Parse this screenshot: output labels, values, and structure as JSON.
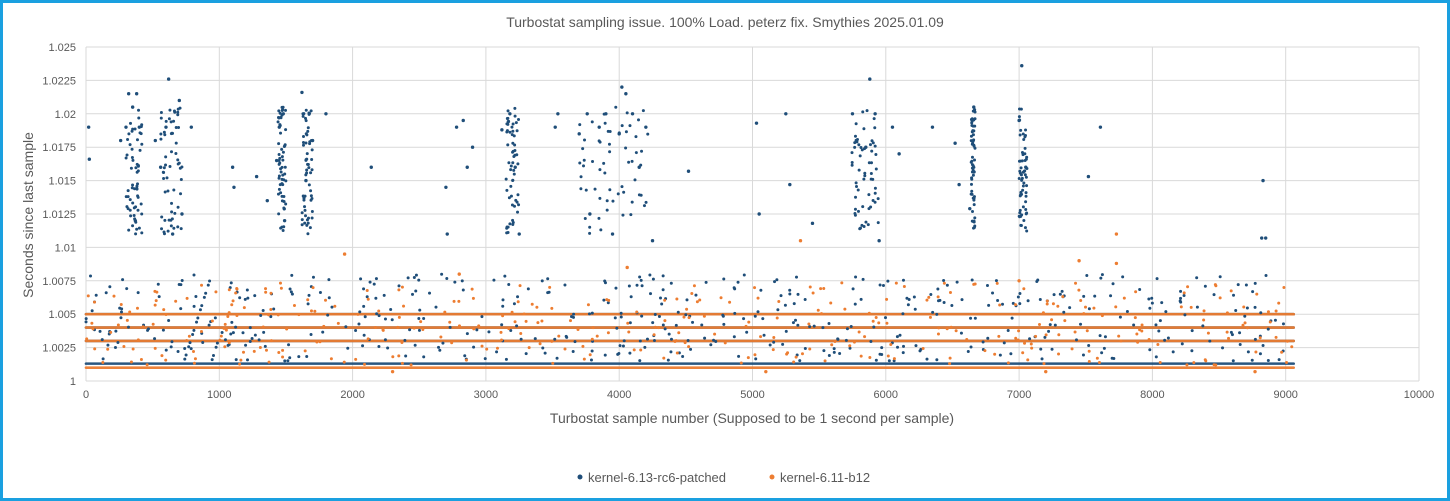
{
  "chart_data": {
    "type": "scatter",
    "title": "Turbostat sampling issue. 100% Load. peterz fix. Smythies 2025.01.09",
    "xlabel": "Turbostat sample number (Supposed to be 1 second per sample)",
    "ylabel": "Seconds since last sample",
    "xlim": [
      0,
      10000
    ],
    "ylim": [
      1,
      1.025
    ],
    "x_ticks": [
      "0",
      "1000",
      "2000",
      "3000",
      "4000",
      "5000",
      "6000",
      "7000",
      "8000",
      "9000",
      "10000"
    ],
    "y_ticks": [
      "1",
      "1.0025",
      "1.005",
      "1.0075",
      "1.01",
      "1.0125",
      "1.015",
      "1.0175",
      "1.02",
      "1.0225",
      "1.025"
    ],
    "grid": true,
    "legend_position": "bottom",
    "series": [
      {
        "name": "kernel-6.13-rc6-patched",
        "color": "#1f4e79",
        "bands": [
          1.0013,
          1.003,
          1.004,
          1.005
        ],
        "points": [
          [
            20,
            1.019
          ],
          [
            25,
            1.0166
          ],
          [
            260,
            1.018
          ],
          [
            300,
            1.019
          ],
          [
            320,
            1.0215
          ],
          [
            350,
            1.0205
          ],
          [
            370,
            1.012
          ],
          [
            380,
            1.0215
          ],
          [
            400,
            1.019
          ],
          [
            520,
            1.018
          ],
          [
            560,
            1.016
          ],
          [
            600,
            1.019
          ],
          [
            620,
            1.0226
          ],
          [
            650,
            1.011
          ],
          [
            700,
            1.021
          ],
          [
            720,
            1.0125
          ],
          [
            790,
            1.019
          ],
          [
            1100,
            1.016
          ],
          [
            1110,
            1.0145
          ],
          [
            1280,
            1.0153
          ],
          [
            1360,
            1.0135
          ],
          [
            1430,
            1.0165
          ],
          [
            1450,
            1.019
          ],
          [
            1480,
            1.02
          ],
          [
            1490,
            1.012
          ],
          [
            1620,
            1.0216
          ],
          [
            1650,
            1.015
          ],
          [
            1700,
            1.018
          ],
          [
            1800,
            1.02
          ],
          [
            2140,
            1.016
          ],
          [
            2700,
            1.0145
          ],
          [
            2710,
            1.011
          ],
          [
            2780,
            1.019
          ],
          [
            2830,
            1.0195
          ],
          [
            2860,
            1.016
          ],
          [
            2900,
            1.0175
          ],
          [
            3120,
            1.0188
          ],
          [
            3180,
            1.02
          ],
          [
            3220,
            1.016
          ],
          [
            3250,
            1.011
          ],
          [
            3520,
            1.019
          ],
          [
            3540,
            1.02
          ],
          [
            3700,
            1.0185
          ],
          [
            3760,
            1.02
          ],
          [
            3780,
            1.0125
          ],
          [
            3850,
            1.019
          ],
          [
            3900,
            1.02
          ],
          [
            3950,
            1.011
          ],
          [
            4000,
            1.0185
          ],
          [
            4020,
            1.022
          ],
          [
            4050,
            1.0215
          ],
          [
            4100,
            1.02
          ],
          [
            4150,
            1.016
          ],
          [
            4200,
            1.019
          ],
          [
            4250,
            1.0105
          ],
          [
            4520,
            1.0157
          ],
          [
            5030,
            1.0193
          ],
          [
            5050,
            1.0125
          ],
          [
            5250,
            1.02
          ],
          [
            5280,
            1.0147
          ],
          [
            5450,
            1.0118
          ],
          [
            5750,
            1.02
          ],
          [
            5850,
            1.0175
          ],
          [
            5880,
            1.0226
          ],
          [
            5920,
            1.02
          ],
          [
            5950,
            1.0105
          ],
          [
            6050,
            1.019
          ],
          [
            6100,
            1.017
          ],
          [
            6350,
            1.019
          ],
          [
            6520,
            1.0178
          ],
          [
            6550,
            1.0147
          ],
          [
            6630,
            1.0129
          ],
          [
            6660,
            1.0205
          ],
          [
            7000,
            1.0195
          ],
          [
            7020,
            1.0236
          ],
          [
            7050,
            1.016
          ],
          [
            7520,
            1.0153
          ],
          [
            7610,
            1.019
          ],
          [
            8830,
            1.015
          ],
          [
            8850,
            1.0107
          ],
          [
            8820,
            1.0107
          ]
        ]
      },
      {
        "name": "kernel-6.11-b12",
        "color": "#ed7d31",
        "bands": [
          1.001,
          1.003,
          1.004,
          1.005
        ],
        "points": [
          [
            1940,
            1.0095
          ],
          [
            5360,
            1.0105
          ],
          [
            4060,
            1.0085
          ],
          [
            7730,
            1.011
          ],
          [
            7450,
            1.009
          ],
          [
            7730,
            1.0088
          ],
          [
            2800,
            1.008
          ],
          [
            7000,
            1.0075
          ],
          [
            5100,
            1.0007
          ],
          [
            2300,
            1.0007
          ],
          [
            8770,
            1.0007
          ],
          [
            7200,
            1.0007
          ]
        ]
      }
    ]
  }
}
